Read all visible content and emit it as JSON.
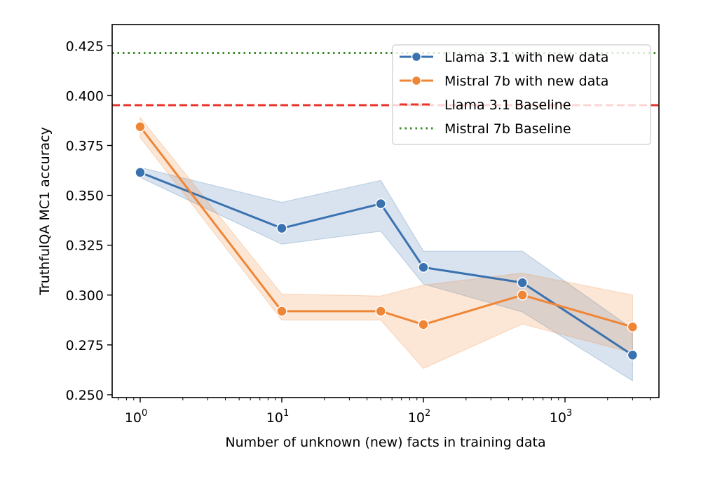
{
  "chart_data": {
    "type": "line",
    "title": "",
    "xlabel": "Number of unknown (new) facts in training data",
    "ylabel": "TruthfulQA MC1 accuracy",
    "xscale": "log",
    "xlim": [
      0.7,
      4500
    ],
    "ylim": [
      0.249,
      0.43
    ],
    "grid": false,
    "legend_position": "top-right",
    "x_ticks": [
      {
        "value": 1,
        "base": "10",
        "exp": "0"
      },
      {
        "value": 10,
        "base": "10",
        "exp": "1"
      },
      {
        "value": 100,
        "base": "10",
        "exp": "2"
      },
      {
        "value": 1000,
        "base": "10",
        "exp": "3"
      }
    ],
    "y_ticks": [
      {
        "value": 0.25,
        "label": "0.250"
      },
      {
        "value": 0.275,
        "label": "0.275"
      },
      {
        "value": 0.3,
        "label": "0.300"
      },
      {
        "value": 0.325,
        "label": "0.325"
      },
      {
        "value": 0.35,
        "label": "0.350"
      },
      {
        "value": 0.375,
        "label": "0.375"
      },
      {
        "value": 0.4,
        "label": "0.400"
      },
      {
        "value": 0.425,
        "label": "0.425"
      }
    ],
    "x": [
      1,
      10,
      50,
      100,
      500,
      3000
    ],
    "series": [
      {
        "name": "Llama 3.1 with new data",
        "color": "#3a72b0",
        "band_color": "#3a72b0",
        "values": [
          0.3615,
          0.3335,
          0.3458,
          0.3139,
          0.3062,
          0.2699
        ],
        "ci_lower": [
          0.359,
          0.3255,
          0.332,
          0.3055,
          0.2915,
          0.257
        ],
        "ci_upper": [
          0.364,
          0.3465,
          0.3575,
          0.322,
          0.322,
          0.283
        ]
      },
      {
        "name": "Mistral 7b with new data",
        "color": "#ef8636",
        "band_color": "#ef8636",
        "values": [
          0.3844,
          0.2919,
          0.2919,
          0.2852,
          0.3,
          0.284
        ],
        "ci_lower": [
          0.379,
          0.2875,
          0.2875,
          0.2632,
          0.2855,
          0.271
        ],
        "ci_upper": [
          0.389,
          0.3005,
          0.2995,
          0.305,
          0.311,
          0.3
        ]
      }
    ],
    "baselines": [
      {
        "name": "Llama 3.1 Baseline",
        "value": 0.3952,
        "color": "#e8352b",
        "style": "dashed"
      },
      {
        "name": "Mistral 7b Baseline",
        "value": 0.4214,
        "color": "#3a8a26",
        "style": "dotted"
      }
    ]
  }
}
